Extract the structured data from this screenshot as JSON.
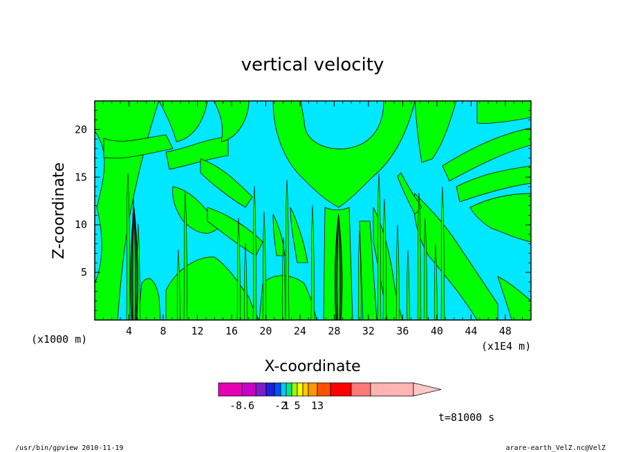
{
  "chart_data": {
    "type": "heatmap",
    "title": "vertical velocity",
    "xlabel": "X-coordinate",
    "ylabel": "Z-coordinate",
    "x_unit_left": "(x1000 m)",
    "x_unit_right": "(x1E4 m)",
    "xlim": [
      0,
      51
    ],
    "ylim": [
      0,
      23
    ],
    "x_ticks": [
      4,
      8,
      12,
      16,
      20,
      24,
      28,
      32,
      36,
      40,
      44,
      48
    ],
    "y_ticks": [
      5,
      10,
      15,
      20
    ],
    "time_label": "t=81000 s",
    "colorbar": {
      "colors": [
        "#e600b4",
        "#c800c8",
        "#7a1ec8",
        "#1e1ee6",
        "#0050ff",
        "#00c8ff",
        "#00e68c",
        "#96ff00",
        "#ffff00",
        "#ffc800",
        "#ff9600",
        "#ff5000",
        "#ff0000",
        "#ff7878",
        "#ffb4b4",
        "#ffc8c8"
      ],
      "tick_labels": [
        "-8.6",
        "-2",
        "1",
        "5",
        "13"
      ],
      "tick_segment_index": [
        1,
        5,
        6,
        8,
        11
      ]
    },
    "field": {
      "dominant_regions": [
        {
          "value_class": "weak positive",
          "color": "#00ff00"
        },
        {
          "value_class": "weak negative",
          "color": "#00e6ff"
        }
      ]
    }
  },
  "footer": {
    "left": "/usr/bin/gpview  2010-11-19",
    "right": "arare-earth_VelZ.nc@VelZ"
  },
  "colors": {
    "plot_border": "#000000",
    "contour_line": "#000000"
  }
}
